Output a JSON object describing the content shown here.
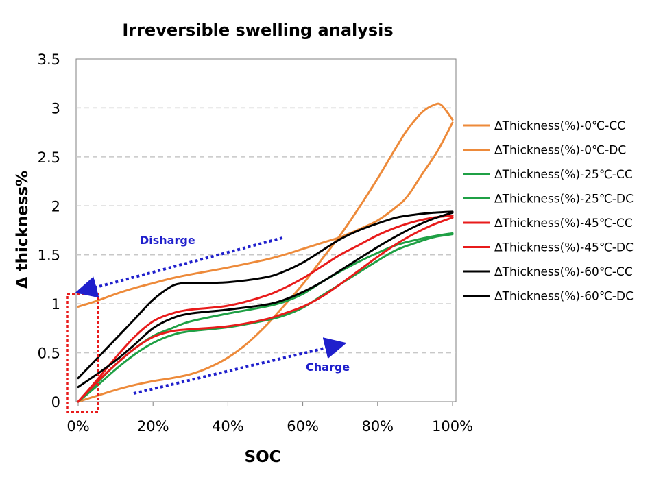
{
  "chart_data": {
    "type": "line",
    "title": "Irreversible swelling analysis",
    "xlabel": "SOC",
    "ylabel": "Δ thickness%",
    "xlim": [
      0,
      100
    ],
    "ylim": [
      0,
      3.5
    ],
    "x_ticks": [
      "0%",
      "20%",
      "40%",
      "60%",
      "80%",
      "100%"
    ],
    "y_ticks": [
      "0",
      "0.5",
      "1",
      "1.5",
      "2",
      "2.5",
      "3",
      "3.5"
    ],
    "grid": "horizontal-dashed",
    "legend_position": "right",
    "series": [
      {
        "name": "ΔThickness(%)-0℃-CC",
        "color": "#ED8A3A",
        "x": [
          0,
          5,
          10,
          15,
          20,
          25,
          30,
          35,
          40,
          45,
          50,
          55,
          60,
          65,
          70,
          75,
          80,
          85,
          88,
          92,
          95,
          97,
          100
        ],
        "y": [
          0.0,
          0.06,
          0.12,
          0.17,
          0.21,
          0.24,
          0.28,
          0.35,
          0.45,
          0.59,
          0.77,
          0.98,
          1.2,
          1.45,
          1.7,
          1.98,
          2.28,
          2.6,
          2.78,
          2.96,
          3.03,
          3.03,
          2.88
        ]
      },
      {
        "name": "ΔThickness(%)-0℃-DC",
        "color": "#ED8A3A",
        "x": [
          0,
          5,
          10,
          15,
          20,
          25,
          30,
          40,
          50,
          55,
          60,
          65,
          70,
          75,
          80,
          85,
          88,
          92,
          96,
          100
        ],
        "y": [
          0.97,
          1.03,
          1.1,
          1.16,
          1.21,
          1.26,
          1.3,
          1.37,
          1.45,
          1.5,
          1.56,
          1.62,
          1.68,
          1.76,
          1.85,
          1.99,
          2.1,
          2.33,
          2.56,
          2.85
        ]
      },
      {
        "name": "ΔThickness(%)-25℃-CC",
        "color": "#1FA045",
        "x": [
          0,
          5,
          10,
          15,
          20,
          25,
          30,
          40,
          50,
          55,
          60,
          65,
          70,
          75,
          80,
          85,
          90,
          95,
          100
        ],
        "y": [
          0.0,
          0.16,
          0.33,
          0.48,
          0.6,
          0.68,
          0.72,
          0.76,
          0.83,
          0.88,
          0.96,
          1.08,
          1.2,
          1.32,
          1.44,
          1.55,
          1.62,
          1.68,
          1.71
        ]
      },
      {
        "name": "ΔThickness(%)-25℃-DC",
        "color": "#1FA045",
        "x": [
          0,
          5,
          10,
          15,
          20,
          25,
          30,
          40,
          50,
          55,
          60,
          65,
          70,
          75,
          80,
          85,
          90,
          95,
          100
        ],
        "y": [
          0.0,
          0.19,
          0.38,
          0.54,
          0.67,
          0.75,
          0.82,
          0.9,
          0.97,
          1.02,
          1.1,
          1.22,
          1.33,
          1.43,
          1.52,
          1.6,
          1.65,
          1.69,
          1.72
        ]
      },
      {
        "name": "ΔThickness(%)-45℃-CC",
        "color": "#E81B1B",
        "x": [
          0,
          5,
          10,
          15,
          20,
          25,
          30,
          40,
          50,
          55,
          60,
          65,
          70,
          75,
          80,
          85,
          90,
          95,
          100
        ],
        "y": [
          0.0,
          0.2,
          0.38,
          0.54,
          0.66,
          0.72,
          0.74,
          0.77,
          0.84,
          0.9,
          0.97,
          1.07,
          1.2,
          1.34,
          1.48,
          1.61,
          1.72,
          1.81,
          1.88
        ]
      },
      {
        "name": "ΔThickness(%)-45℃-DC",
        "color": "#E81B1B",
        "x": [
          0,
          5,
          10,
          15,
          20,
          25,
          30,
          40,
          50,
          55,
          60,
          65,
          70,
          75,
          80,
          85,
          90,
          95,
          100
        ],
        "y": [
          0.0,
          0.22,
          0.45,
          0.66,
          0.82,
          0.9,
          0.94,
          0.98,
          1.08,
          1.16,
          1.26,
          1.38,
          1.5,
          1.6,
          1.7,
          1.78,
          1.84,
          1.88,
          1.9
        ]
      },
      {
        "name": "ΔThickness(%)-60℃-CC",
        "color": "#000000",
        "x": [
          0,
          5,
          10,
          15,
          20,
          25,
          30,
          40,
          50,
          55,
          60,
          65,
          70,
          75,
          80,
          85,
          90,
          95,
          100
        ],
        "y": [
          0.15,
          0.28,
          0.42,
          0.58,
          0.75,
          0.85,
          0.9,
          0.94,
          0.99,
          1.04,
          1.12,
          1.22,
          1.34,
          1.46,
          1.58,
          1.69,
          1.79,
          1.87,
          1.93
        ]
      },
      {
        "name": "ΔThickness(%)-60℃-DC",
        "color": "#000000",
        "x": [
          0,
          5,
          10,
          15,
          20,
          25,
          28,
          30,
          40,
          50,
          55,
          60,
          65,
          70,
          75,
          80,
          85,
          90,
          95,
          100
        ],
        "y": [
          0.24,
          0.44,
          0.64,
          0.84,
          1.04,
          1.18,
          1.21,
          1.21,
          1.22,
          1.27,
          1.33,
          1.42,
          1.54,
          1.66,
          1.75,
          1.82,
          1.88,
          1.91,
          1.93,
          1.94
        ]
      }
    ],
    "annotations": [
      {
        "text": "Disharge",
        "color": "#1F1FCC"
      },
      {
        "text": "Charge",
        "color": "#1F1FCC"
      }
    ]
  }
}
